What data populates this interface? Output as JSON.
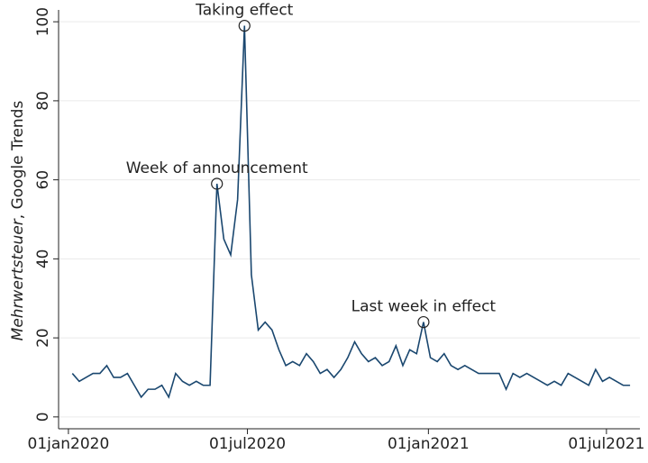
{
  "chart_data": {
    "type": "line",
    "ylabel": {
      "italic": "Mehrwertsteuer",
      "rest": ", Google Trends"
    },
    "x": [
      "2020-01-05",
      "2020-01-12",
      "2020-01-19",
      "2020-01-26",
      "2020-02-02",
      "2020-02-09",
      "2020-02-16",
      "2020-02-23",
      "2020-03-01",
      "2020-03-08",
      "2020-03-15",
      "2020-03-22",
      "2020-03-29",
      "2020-04-05",
      "2020-04-12",
      "2020-04-19",
      "2020-04-26",
      "2020-05-03",
      "2020-05-10",
      "2020-05-17",
      "2020-05-24",
      "2020-05-31",
      "2020-06-07",
      "2020-06-14",
      "2020-06-21",
      "2020-06-28",
      "2020-07-05",
      "2020-07-12",
      "2020-07-19",
      "2020-07-26",
      "2020-08-02",
      "2020-08-09",
      "2020-08-16",
      "2020-08-23",
      "2020-08-30",
      "2020-09-06",
      "2020-09-13",
      "2020-09-20",
      "2020-09-27",
      "2020-10-04",
      "2020-10-11",
      "2020-10-18",
      "2020-10-25",
      "2020-11-01",
      "2020-11-08",
      "2020-11-15",
      "2020-11-22",
      "2020-11-29",
      "2020-12-06",
      "2020-12-13",
      "2020-12-20",
      "2020-12-27",
      "2021-01-03",
      "2021-01-10",
      "2021-01-17",
      "2021-01-24",
      "2021-01-31",
      "2021-02-07",
      "2021-02-14",
      "2021-02-21",
      "2021-02-28",
      "2021-03-07",
      "2021-03-14",
      "2021-03-21",
      "2021-03-28",
      "2021-04-04",
      "2021-04-11",
      "2021-04-18",
      "2021-04-25",
      "2021-05-02",
      "2021-05-09",
      "2021-05-16",
      "2021-05-23",
      "2021-05-30",
      "2021-06-06",
      "2021-06-13",
      "2021-06-20",
      "2021-06-27",
      "2021-07-04",
      "2021-07-11",
      "2021-07-18",
      "2021-07-25"
    ],
    "series": [
      {
        "color": "#1a476f",
        "values": [
          11,
          9,
          10,
          11,
          11,
          13,
          10,
          10,
          11,
          8,
          5,
          7,
          7,
          8,
          5,
          11,
          9,
          8,
          9,
          8,
          8,
          59,
          45,
          41,
          55,
          99,
          36,
          22,
          24,
          22,
          17,
          13,
          14,
          13,
          16,
          14,
          11,
          12,
          10,
          12,
          15,
          19,
          16,
          14,
          15,
          13,
          14,
          18,
          13,
          17,
          16,
          24,
          15,
          14,
          16,
          13,
          12,
          13,
          12,
          11,
          11,
          11,
          11,
          7,
          11,
          10,
          11,
          10,
          9,
          8,
          9,
          8,
          11,
          10,
          9,
          8,
          12,
          9,
          10,
          9,
          8,
          8
        ]
      }
    ],
    "annotations": [
      {
        "label": "Week of announcement",
        "x": "2020-05-31"
      },
      {
        "label": "Taking effect",
        "x": "2020-06-28"
      },
      {
        "label": "Last week in effect",
        "x": "2020-12-27"
      }
    ],
    "xlim": [
      "2019-12-22",
      "2021-08-04"
    ],
    "xticks": [
      {
        "value": "2020-01-01",
        "label": "01jan2020"
      },
      {
        "value": "2020-07-01",
        "label": "01jul2020"
      },
      {
        "value": "2021-01-01",
        "label": "01jan2021"
      },
      {
        "value": "2021-07-01",
        "label": "01jul2021"
      }
    ],
    "ylim": [
      -3,
      103
    ],
    "yticks": [
      0,
      20,
      40,
      60,
      80,
      100
    ],
    "grid": true
  }
}
